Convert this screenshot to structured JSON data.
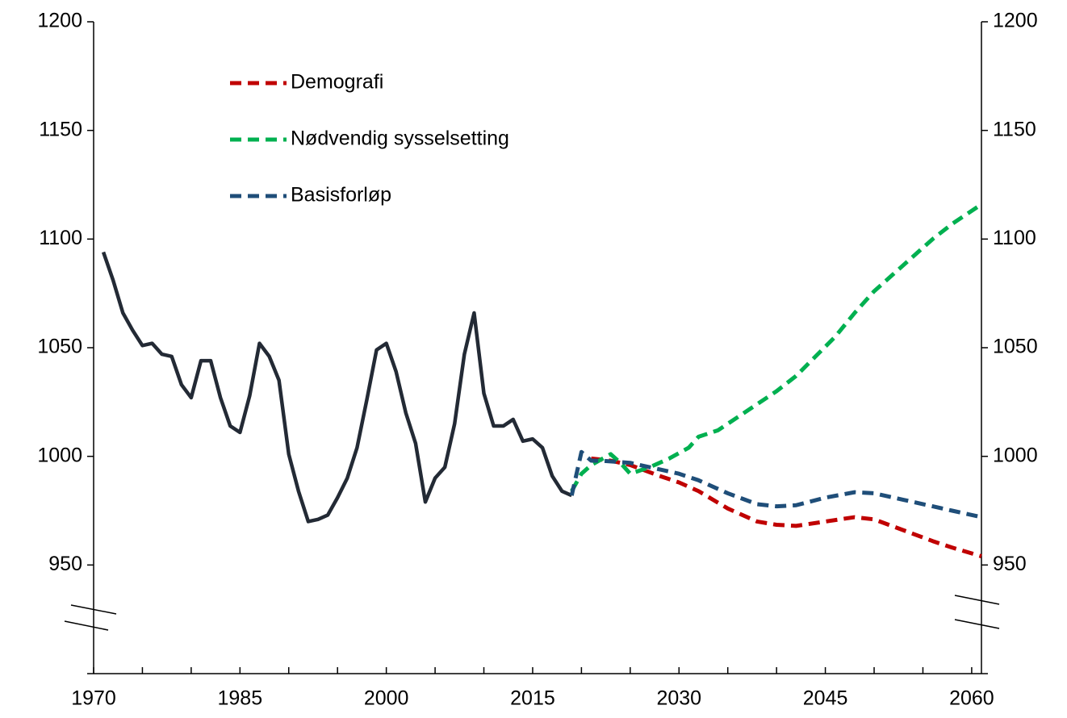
{
  "chart_data": {
    "type": "line",
    "xlim": [
      1970,
      2061
    ],
    "xticks": [
      1970,
      1985,
      2000,
      2015,
      2030,
      2045,
      2060
    ],
    "xminor_ticks": [
      1975,
      1980,
      1990,
      1995,
      2005,
      2010,
      2020,
      2025,
      2035,
      2040,
      2050,
      2055
    ],
    "ylim": [
      900,
      1200
    ],
    "yticks": [
      950,
      1000,
      1050,
      1100,
      1150,
      1200
    ],
    "y2lim": [
      900,
      1200
    ],
    "y2ticks": [
      950,
      1000,
      1050,
      1100,
      1150,
      1200
    ],
    "legend": "upper left",
    "series": [
      {
        "color": "#232a35",
        "style": "solid",
        "x": [
          1971,
          1972,
          1973,
          1974,
          1975,
          1976,
          1977,
          1978,
          1979,
          1980,
          1981,
          1982,
          1983,
          1984,
          1985,
          1986,
          1987,
          1988,
          1989,
          1990,
          1991,
          1992,
          1993,
          1994,
          1995,
          1996,
          1997,
          1998,
          1999,
          2000,
          2001,
          2002,
          2003,
          2004,
          2005,
          2006,
          2007,
          2008,
          2009,
          2010,
          2011,
          2012,
          2013,
          2014,
          2015,
          2016,
          2017,
          2018,
          2019
        ],
        "values": [
          1094,
          1081,
          1066,
          1058,
          1051,
          1052,
          1047,
          1046,
          1033,
          1027,
          1044,
          1044,
          1027,
          1014,
          1011,
          1028,
          1052,
          1046,
          1035,
          1001,
          984,
          970,
          971,
          973,
          981,
          990,
          1004,
          1026,
          1049,
          1052,
          1039,
          1020,
          1006,
          979,
          990,
          995,
          1015,
          1047,
          1066,
          1029,
          1014,
          1014,
          1017,
          1007,
          1008,
          1004,
          991,
          984,
          982
        ]
      },
      {
        "name": "Demografi",
        "color": "#c00000",
        "style": "dashed",
        "x": [
          2021,
          2023,
          2025,
          2028,
          2030,
          2032,
          2035,
          2038,
          2040,
          2042,
          2045,
          2048,
          2050,
          2053,
          2056,
          2058,
          2061
        ],
        "values": [
          999,
          998,
          996,
          991,
          988,
          984,
          976,
          970,
          968.5,
          968,
          970,
          972,
          971,
          966,
          961,
          958,
          954
        ]
      },
      {
        "name": "Nødvendig sysselsetting",
        "color": "#00b050",
        "style": "dashed",
        "x": [
          2019,
          2020,
          2021,
          2023,
          2024,
          2025,
          2027,
          2029,
          2031,
          2032,
          2034,
          2036,
          2038,
          2040,
          2042,
          2044,
          2046,
          2048,
          2050,
          2052,
          2054,
          2056,
          2058,
          2061
        ],
        "values": [
          984,
          992,
          996,
          1001,
          997,
          992,
          995,
          999,
          1004,
          1009,
          1012,
          1018,
          1024,
          1030,
          1037,
          1046,
          1055,
          1066,
          1076,
          1084,
          1092,
          1100,
          1107,
          1116
        ]
      },
      {
        "name": "Basisforløp",
        "color": "#1f4e79",
        "style": "dashed",
        "x": [
          2019,
          2020,
          2021,
          2022,
          2025,
          2028,
          2030,
          2032,
          2035,
          2038,
          2040,
          2042,
          2045,
          2048,
          2050,
          2053,
          2056,
          2058,
          2061
        ],
        "values": [
          982,
          1002,
          998,
          998,
          997,
          994,
          992,
          989,
          983,
          978,
          977,
          977.5,
          981,
          983.5,
          983,
          980,
          977,
          975,
          972
        ]
      }
    ]
  }
}
